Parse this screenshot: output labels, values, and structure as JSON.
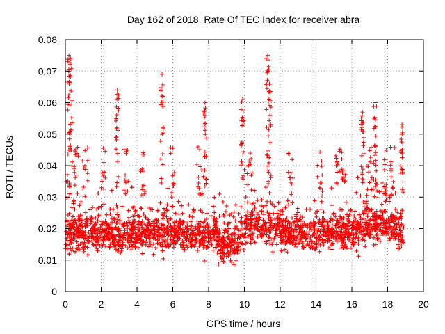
{
  "chart_data": {
    "type": "scatter",
    "title": "Day 162 of 2018, Rate Of TEC Index for receiver abra",
    "xlabel": "GPS time / hours",
    "ylabel": "ROTI / TECUs",
    "xlim": [
      0,
      20
    ],
    "ylim": [
      0,
      0.08
    ],
    "x_ticks": [
      0,
      2,
      4,
      6,
      8,
      10,
      12,
      14,
      16,
      18,
      20
    ],
    "y_ticks": [
      0,
      0.01,
      0.02,
      0.03,
      0.04,
      0.05,
      0.06,
      0.07,
      0.08
    ],
    "x_tick_labels": [
      "0",
      "2",
      "4",
      "6",
      "8",
      "10",
      "12",
      "14",
      "16",
      "18",
      "20"
    ],
    "y_tick_labels": [
      "0",
      "0.01",
      "0.02",
      "0.03",
      "0.04",
      "0.05",
      "0.06",
      "0.07",
      "0.08"
    ],
    "grid": true,
    "marker": "+",
    "marker_color": "#ff0000",
    "series": [
      {
        "name": "ROTI",
        "x_range": [
          0,
          18.9
        ],
        "typical_range": [
          0.008,
          0.032
        ],
        "peaks": [
          {
            "x": 0.2,
            "y": 0.075
          },
          {
            "x": 0.3,
            "y": 0.074
          },
          {
            "x": 2.9,
            "y": 0.064
          },
          {
            "x": 5.4,
            "y": 0.069
          },
          {
            "x": 7.8,
            "y": 0.06
          },
          {
            "x": 9.9,
            "y": 0.061
          },
          {
            "x": 11.3,
            "y": 0.075
          },
          {
            "x": 11.4,
            "y": 0.066
          },
          {
            "x": 16.6,
            "y": 0.057
          },
          {
            "x": 17.3,
            "y": 0.06
          },
          {
            "x": 18.8,
            "y": 0.053
          }
        ]
      }
    ]
  }
}
